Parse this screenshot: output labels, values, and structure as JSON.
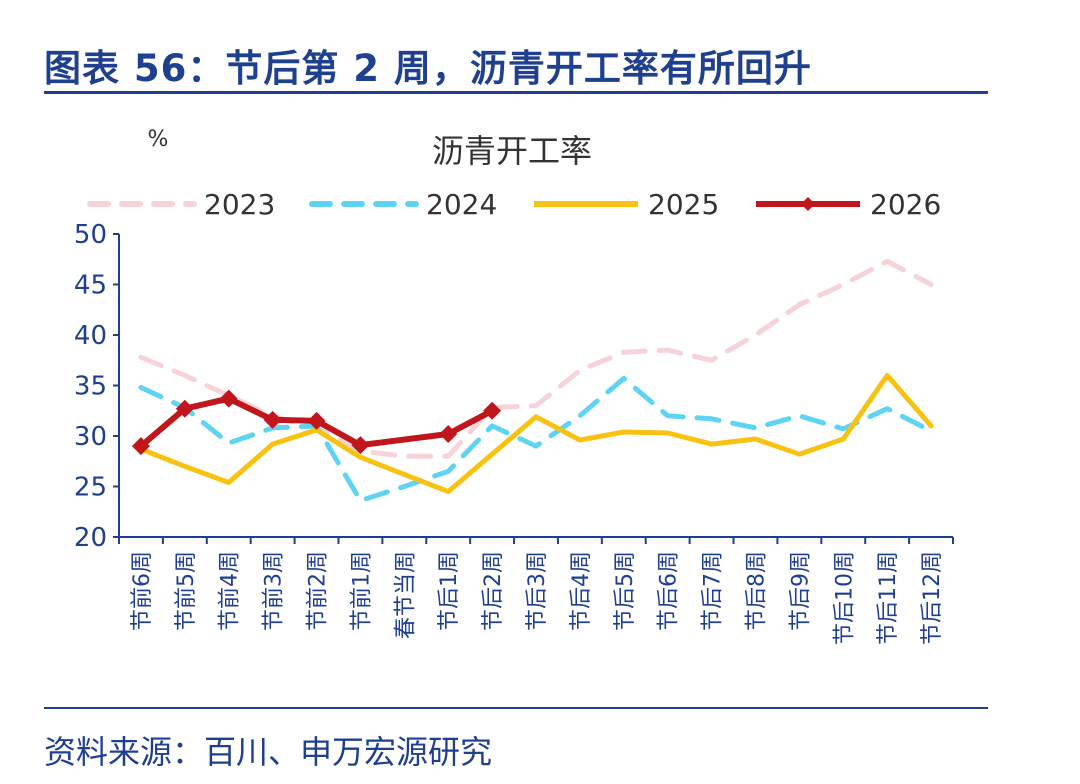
{
  "figure_title": "图表 56：节后第 2 周，沥青开工率有所回升",
  "source_note": "资料来源：百川、申万宏源研究",
  "chart_data": {
    "type": "line",
    "title": "沥青开工率",
    "ylabel": "%",
    "xlabel": "",
    "ylim": [
      20,
      50
    ],
    "yticks": [
      20,
      25,
      30,
      35,
      40,
      45,
      50
    ],
    "categories": [
      "节前6周",
      "节前5周",
      "节前4周",
      "节前3周",
      "节前2周",
      "节前1周",
      "春节当周",
      "节后1周",
      "节后2周",
      "节后3周",
      "节后4周",
      "节后5周",
      "节后6周",
      "节后7周",
      "节后8周",
      "节后9周",
      "节后10周",
      "节后11周",
      "节后12周"
    ],
    "legend_position": "top",
    "series": [
      {
        "name": "2023",
        "color": "#f6d3d8",
        "style": "dashed",
        "values": [
          37.8,
          36.0,
          34.0,
          32.0,
          30.8,
          28.5,
          28.0,
          28.0,
          32.8,
          33.0,
          36.5,
          38.3,
          38.5,
          37.5,
          40.0,
          43.0,
          45.0,
          47.3,
          45.0
        ]
      },
      {
        "name": "2024",
        "color": "#5fd3f3",
        "style": "dashed",
        "values": [
          34.8,
          32.8,
          29.3,
          30.8,
          31.0,
          23.6,
          25.0,
          26.5,
          31.0,
          29.0,
          32.0,
          35.7,
          32.0,
          31.7,
          30.8,
          32.0,
          30.7,
          32.7,
          30.5
        ]
      },
      {
        "name": "2025",
        "color": "#f8c212",
        "style": "solid",
        "values": [
          28.7,
          27.0,
          25.4,
          29.2,
          30.6,
          27.9,
          26.2,
          24.5,
          28.2,
          31.9,
          29.6,
          30.4,
          30.3,
          29.2,
          29.7,
          28.2,
          29.7,
          36.0,
          31.0
        ]
      },
      {
        "name": "2026",
        "color": "#c0161c",
        "style": "marker",
        "values": [
          29.0,
          32.7,
          33.7,
          31.6,
          31.5,
          29.1,
          null,
          30.2,
          32.5,
          null,
          null,
          null,
          null,
          null,
          null,
          null,
          null,
          null,
          null
        ]
      }
    ]
  }
}
